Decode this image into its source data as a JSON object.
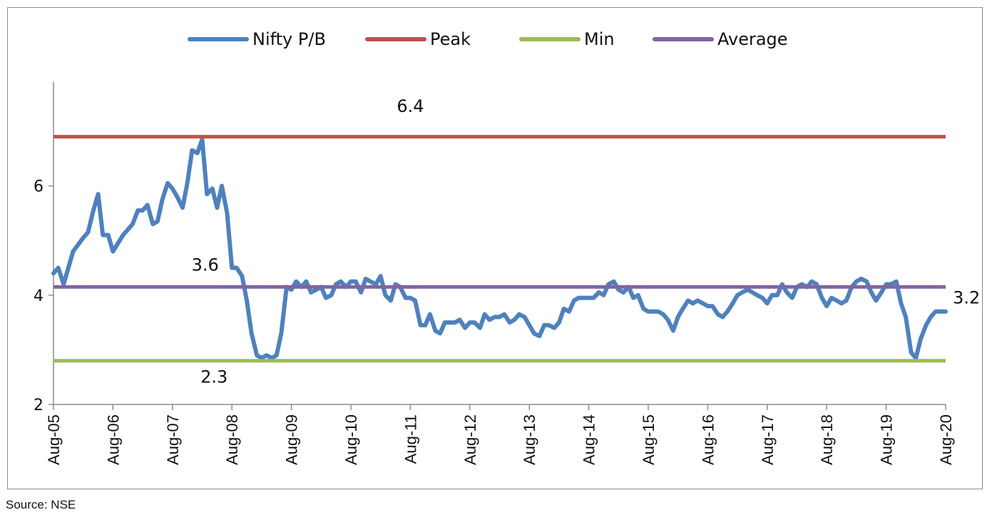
{
  "source": "Source: NSE",
  "chart_data": {
    "type": "line",
    "title": "",
    "xlabel": "",
    "ylabel": "",
    "ylim": [
      2,
      7.9
    ],
    "yticks": [
      2,
      4,
      6
    ],
    "xticks": [
      "Aug-05",
      "Aug-06",
      "Aug-07",
      "Aug-08",
      "Aug-09",
      "Aug-10",
      "Aug-11",
      "Aug-12",
      "Aug-13",
      "Aug-14",
      "Aug-15",
      "Aug-16",
      "Aug-17",
      "Aug-18",
      "Aug-19",
      "Aug-20"
    ],
    "grid": false,
    "legend_position": "top",
    "series": [
      {
        "name": "Nifty P/B",
        "color": "#4f81bd",
        "kind": "line",
        "values": [
          [
            0.0,
            4.4
          ],
          [
            0.08,
            4.5
          ],
          [
            0.17,
            4.2
          ],
          [
            0.33,
            4.8
          ],
          [
            0.5,
            5.05
          ],
          [
            0.58,
            5.15
          ],
          [
            0.67,
            5.55
          ],
          [
            0.75,
            5.85
          ],
          [
            0.83,
            5.1
          ],
          [
            0.92,
            5.1
          ],
          [
            1.0,
            4.8
          ],
          [
            1.17,
            5.1
          ],
          [
            1.33,
            5.3
          ],
          [
            1.42,
            5.55
          ],
          [
            1.5,
            5.55
          ],
          [
            1.58,
            5.65
          ],
          [
            1.67,
            5.3
          ],
          [
            1.75,
            5.35
          ],
          [
            1.83,
            5.75
          ],
          [
            1.92,
            6.05
          ],
          [
            2.0,
            5.95
          ],
          [
            2.08,
            5.8
          ],
          [
            2.17,
            5.6
          ],
          [
            2.25,
            6.05
          ],
          [
            2.33,
            6.65
          ],
          [
            2.42,
            6.6
          ],
          [
            2.5,
            6.85
          ],
          [
            2.58,
            5.85
          ],
          [
            2.67,
            5.95
          ],
          [
            2.75,
            5.6
          ],
          [
            2.83,
            6.0
          ],
          [
            2.92,
            5.5
          ],
          [
            3.0,
            4.5
          ],
          [
            3.08,
            4.5
          ],
          [
            3.17,
            4.35
          ],
          [
            3.25,
            3.9
          ],
          [
            3.33,
            3.3
          ],
          [
            3.42,
            2.9
          ],
          [
            3.5,
            2.85
          ],
          [
            3.58,
            2.9
          ],
          [
            3.67,
            2.85
          ],
          [
            3.75,
            2.9
          ],
          [
            3.83,
            3.3
          ],
          [
            3.92,
            4.15
          ],
          [
            4.0,
            4.1
          ],
          [
            4.08,
            4.25
          ],
          [
            4.17,
            4.15
          ],
          [
            4.25,
            4.25
          ],
          [
            4.33,
            4.05
          ],
          [
            4.42,
            4.1
          ],
          [
            4.5,
            4.15
          ],
          [
            4.58,
            3.95
          ],
          [
            4.67,
            4.0
          ],
          [
            4.75,
            4.2
          ],
          [
            4.83,
            4.25
          ],
          [
            4.92,
            4.15
          ],
          [
            5.0,
            4.25
          ],
          [
            5.08,
            4.25
          ],
          [
            5.17,
            4.05
          ],
          [
            5.25,
            4.3
          ],
          [
            5.33,
            4.25
          ],
          [
            5.42,
            4.2
          ],
          [
            5.5,
            4.35
          ],
          [
            5.58,
            4.0
          ],
          [
            5.67,
            3.9
          ],
          [
            5.75,
            4.2
          ],
          [
            5.83,
            4.15
          ],
          [
            5.92,
            3.95
          ],
          [
            6.0,
            3.95
          ],
          [
            6.08,
            3.9
          ],
          [
            6.17,
            3.45
          ],
          [
            6.25,
            3.45
          ],
          [
            6.33,
            3.65
          ],
          [
            6.42,
            3.35
          ],
          [
            6.5,
            3.3
          ],
          [
            6.58,
            3.5
          ],
          [
            6.67,
            3.5
          ],
          [
            6.75,
            3.5
          ],
          [
            6.83,
            3.55
          ],
          [
            6.92,
            3.4
          ],
          [
            7.0,
            3.5
          ],
          [
            7.08,
            3.5
          ],
          [
            7.17,
            3.4
          ],
          [
            7.25,
            3.65
          ],
          [
            7.33,
            3.55
          ],
          [
            7.42,
            3.6
          ],
          [
            7.5,
            3.6
          ],
          [
            7.58,
            3.65
          ],
          [
            7.67,
            3.5
          ],
          [
            7.75,
            3.55
          ],
          [
            7.83,
            3.65
          ],
          [
            7.92,
            3.6
          ],
          [
            8.0,
            3.45
          ],
          [
            8.08,
            3.3
          ],
          [
            8.17,
            3.25
          ],
          [
            8.25,
            3.45
          ],
          [
            8.33,
            3.45
          ],
          [
            8.42,
            3.4
          ],
          [
            8.5,
            3.5
          ],
          [
            8.58,
            3.75
          ],
          [
            8.67,
            3.7
          ],
          [
            8.75,
            3.9
          ],
          [
            8.83,
            3.95
          ],
          [
            8.92,
            3.95
          ],
          [
            9.0,
            3.95
          ],
          [
            9.08,
            3.95
          ],
          [
            9.17,
            4.05
          ],
          [
            9.25,
            4.0
          ],
          [
            9.33,
            4.2
          ],
          [
            9.42,
            4.25
          ],
          [
            9.5,
            4.1
          ],
          [
            9.58,
            4.05
          ],
          [
            9.67,
            4.15
          ],
          [
            9.75,
            3.95
          ],
          [
            9.83,
            4.0
          ],
          [
            9.92,
            3.75
          ],
          [
            10.0,
            3.7
          ],
          [
            10.08,
            3.7
          ],
          [
            10.17,
            3.7
          ],
          [
            10.25,
            3.65
          ],
          [
            10.33,
            3.55
          ],
          [
            10.42,
            3.35
          ],
          [
            10.5,
            3.6
          ],
          [
            10.58,
            3.75
          ],
          [
            10.67,
            3.9
          ],
          [
            10.75,
            3.85
          ],
          [
            10.83,
            3.9
          ],
          [
            10.92,
            3.85
          ],
          [
            11.0,
            3.8
          ],
          [
            11.08,
            3.8
          ],
          [
            11.17,
            3.65
          ],
          [
            11.25,
            3.6
          ],
          [
            11.33,
            3.7
          ],
          [
            11.42,
            3.85
          ],
          [
            11.5,
            4.0
          ],
          [
            11.58,
            4.05
          ],
          [
            11.67,
            4.1
          ],
          [
            11.75,
            4.05
          ],
          [
            11.83,
            4.0
          ],
          [
            11.92,
            3.95
          ],
          [
            12.0,
            3.85
          ],
          [
            12.08,
            4.0
          ],
          [
            12.17,
            4.0
          ],
          [
            12.25,
            4.2
          ],
          [
            12.33,
            4.05
          ],
          [
            12.42,
            3.95
          ],
          [
            12.5,
            4.15
          ],
          [
            12.58,
            4.2
          ],
          [
            12.67,
            4.15
          ],
          [
            12.75,
            4.25
          ],
          [
            12.83,
            4.2
          ],
          [
            12.92,
            3.95
          ],
          [
            13.0,
            3.8
          ],
          [
            13.08,
            3.95
          ],
          [
            13.17,
            3.9
          ],
          [
            13.25,
            3.85
          ],
          [
            13.33,
            3.9
          ],
          [
            13.42,
            4.15
          ],
          [
            13.5,
            4.25
          ],
          [
            13.58,
            4.3
          ],
          [
            13.67,
            4.25
          ],
          [
            13.75,
            4.05
          ],
          [
            13.83,
            3.9
          ],
          [
            13.92,
            4.05
          ],
          [
            14.0,
            4.2
          ],
          [
            14.08,
            4.2
          ],
          [
            14.17,
            4.25
          ],
          [
            14.25,
            3.85
          ],
          [
            14.33,
            3.6
          ],
          [
            14.42,
            2.95
          ],
          [
            14.5,
            2.85
          ],
          [
            14.58,
            3.2
          ],
          [
            14.67,
            3.45
          ],
          [
            14.75,
            3.6
          ],
          [
            14.83,
            3.7
          ],
          [
            15.0,
            3.7
          ]
        ]
      },
      {
        "name": "Peak",
        "color": "#c0504d",
        "kind": "hline",
        "value": 6.9
      },
      {
        "name": "Min",
        "color": "#9bbb59",
        "kind": "hline",
        "value": 2.8
      },
      {
        "name": "Average",
        "color": "#8064a2",
        "kind": "hline",
        "value": 4.15
      }
    ],
    "annotations": [
      {
        "text": "6.4",
        "x": 6.0,
        "y": 7.35
      },
      {
        "text": "3.6",
        "x": 2.55,
        "y": 4.45
      },
      {
        "text": "2.3",
        "x": 2.7,
        "y": 2.4
      },
      {
        "text": "3.2",
        "x": 15.35,
        "y": 3.85
      }
    ]
  }
}
